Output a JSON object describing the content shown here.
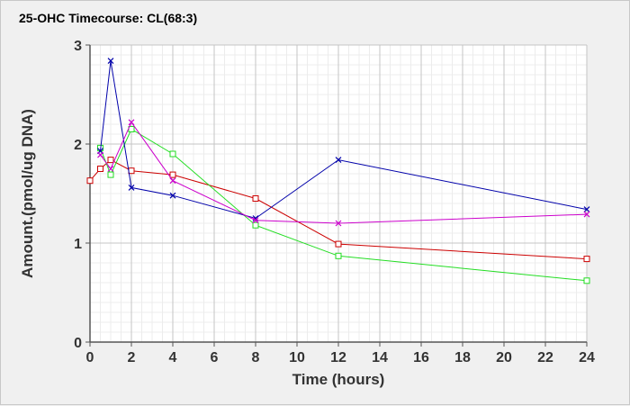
{
  "chart_data": {
    "type": "line",
    "title": "25-OHC Timecourse: CL(68:3)",
    "xlabel": "Time (hours)",
    "ylabel": "Amount.(pmol/ug DNA)",
    "xlim": [
      0,
      24
    ],
    "ylim": [
      0,
      3
    ],
    "xticks": [
      0,
      2,
      4,
      6,
      8,
      10,
      12,
      14,
      16,
      18,
      20,
      22,
      24
    ],
    "yticks": [
      0,
      1,
      2,
      3
    ],
    "grid": true,
    "legend": "none",
    "series": [
      {
        "color": "#cc0000",
        "marker": "square",
        "x": [
          0,
          0.5,
          1,
          2,
          4,
          8,
          12,
          24
        ],
        "y": [
          1.63,
          1.75,
          1.84,
          1.73,
          1.69,
          1.45,
          0.99,
          0.84
        ]
      },
      {
        "color": "#22dd22",
        "marker": "square",
        "x": [
          0.5,
          1,
          2,
          4,
          8,
          12,
          24
        ],
        "y": [
          1.96,
          1.69,
          2.15,
          1.9,
          1.18,
          0.87,
          0.62
        ]
      },
      {
        "color": "#0000aa",
        "marker": "x",
        "x": [
          0.5,
          1,
          2,
          4,
          8,
          12,
          24
        ],
        "y": [
          1.93,
          2.84,
          1.56,
          1.48,
          1.25,
          1.84,
          1.34
        ]
      },
      {
        "color": "#cc00cc",
        "marker": "x",
        "x": [
          0.5,
          1,
          2,
          4,
          8,
          12,
          24
        ],
        "y": [
          1.89,
          1.75,
          2.22,
          1.63,
          1.23,
          1.2,
          1.29
        ]
      }
    ]
  }
}
